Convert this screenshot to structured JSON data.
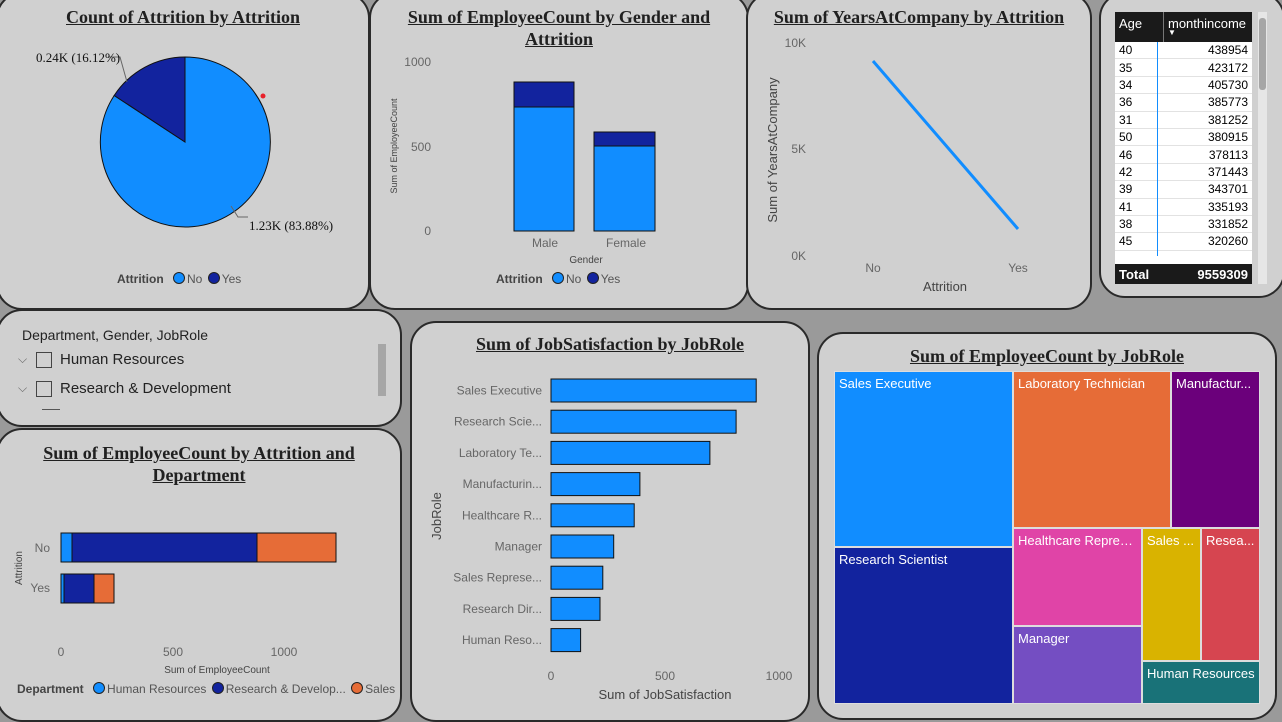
{
  "pie": {
    "title": "Count of Attrition by Attrition",
    "label_yes": "0.24K (16.12%)",
    "label_no": "1.23K (83.88%)",
    "legend_title": "Attrition",
    "legend": [
      "No",
      "Yes"
    ]
  },
  "gender": {
    "title_line1": "Sum of EmployeeCount by Gender and",
    "title_line2": "Attrition",
    "ylabel": "Sum of EmployeeCount",
    "xlabel": "Gender",
    "yticks": [
      "1000",
      "500",
      "0"
    ],
    "legend_title": "Attrition",
    "legend": [
      "No",
      "Yes"
    ]
  },
  "years": {
    "title": "Sum of YearsAtCompany by Attrition",
    "ylabel": "Sum of YearsAtCompany",
    "xlabel": "Attrition",
    "yticks": [
      "10K",
      "5K",
      "0K"
    ]
  },
  "matrix": {
    "headers": [
      "Age",
      "monthincome"
    ],
    "total_label": "Total",
    "total_value": "9559309"
  },
  "slicer": {
    "title": "Department, Gender, JobRole",
    "items": [
      "Human Resources",
      "Research & Development"
    ]
  },
  "dept": {
    "title_line1": "Sum of EmployeeCount by Attrition and",
    "title_line2": "Department",
    "ylabel": "Attrition",
    "xlabel": "Sum of EmployeeCount",
    "xticks": [
      "0",
      "500",
      "1000"
    ],
    "legend_title": "Department",
    "legend": [
      "Human Resources",
      "Research & Develop...",
      "Sales"
    ]
  },
  "jobsat": {
    "title": "Sum of JobSatisfaction by JobRole",
    "ylabel": "JobRole",
    "xlabel": "Sum of JobSatisfaction",
    "xticks": [
      "0",
      "500",
      "1000"
    ]
  },
  "treemap": {
    "title": "Sum of EmployeeCount by JobRole",
    "labels": {
      "sales_exec": "Sales Executive",
      "lab_tech": "Laboratory Technician",
      "manuf": "Manufactur...",
      "research_sci": "Research Scientist",
      "healthcare": "Healthcare Repres...",
      "sales_rep": "Sales ...",
      "research_dir": "Resea...",
      "manager": "Manager",
      "hr": "Human Resources"
    }
  },
  "colors": {
    "light_blue": "#118dff",
    "dark_blue": "#12239e",
    "orange": "#e66c37",
    "purple": "#6b007b",
    "pink": "#e044a7",
    "violet": "#744ec2",
    "yellow": "#d9b300",
    "red": "#d64550",
    "teal": "#197278"
  },
  "chart_data": [
    {
      "type": "pie",
      "title": "Count of Attrition by Attrition",
      "categories": [
        "No",
        "Yes"
      ],
      "values": [
        1233,
        237
      ],
      "percent": [
        83.88,
        16.12
      ],
      "legend_title": "Attrition"
    },
    {
      "type": "bar",
      "title": "Sum of EmployeeCount by Gender and Attrition",
      "categories": [
        "Male",
        "Female"
      ],
      "series": [
        {
          "name": "No",
          "values": [
            732,
            501
          ]
        },
        {
          "name": "Yes",
          "values": [
            150,
            87
          ]
        }
      ],
      "xlabel": "Gender",
      "ylabel": "Sum of EmployeeCount",
      "ylim": [
        0,
        1000
      ],
      "stacked": true
    },
    {
      "type": "line",
      "title": "Sum of YearsAtCompany by Attrition",
      "categories": [
        "No",
        "Yes"
      ],
      "values": [
        8900,
        1200
      ],
      "xlabel": "Attrition",
      "ylabel": "Sum of YearsAtCompany",
      "ylim": [
        0,
        10000
      ]
    },
    {
      "type": "table",
      "columns": [
        "Age",
        "monthincome"
      ],
      "rows": [
        [
          "40",
          "438954"
        ],
        [
          "35",
          "423172"
        ],
        [
          "34",
          "405730"
        ],
        [
          "36",
          "385773"
        ],
        [
          "31",
          "381252"
        ],
        [
          "50",
          "380915"
        ],
        [
          "46",
          "378113"
        ],
        [
          "42",
          "371443"
        ],
        [
          "39",
          "343701"
        ],
        [
          "41",
          "335193"
        ],
        [
          "38",
          "331852"
        ],
        [
          "45",
          "320260"
        ]
      ],
      "total": [
        "Total",
        "9559309"
      ]
    },
    {
      "type": "bar",
      "orientation": "horizontal",
      "stacked": true,
      "title": "Sum of EmployeeCount by Attrition and Department",
      "categories": [
        "No",
        "Yes"
      ],
      "series": [
        {
          "name": "Human Resources",
          "values": [
            51,
            12
          ]
        },
        {
          "name": "Research & Development",
          "values": [
            828,
            133
          ]
        },
        {
          "name": "Sales",
          "values": [
            354,
            92
          ]
        }
      ],
      "xlabel": "Sum of EmployeeCount",
      "ylabel": "Attrition",
      "xlim": [
        0,
        1250
      ]
    },
    {
      "type": "bar",
      "orientation": "horizontal",
      "title": "Sum of JobSatisfaction by JobRole",
      "categories": [
        "Sales Executive",
        "Research Scie...",
        "Laboratory Te...",
        "Manufacturin...",
        "Healthcare R...",
        "Manager",
        "Sales Represe...",
        "Research Dir...",
        "Human Reso..."
      ],
      "values": [
        900,
        812,
        697,
        390,
        365,
        275,
        227,
        215,
        130
      ],
      "xlabel": "Sum of JobSatisfaction",
      "ylabel": "JobRole",
      "xlim": [
        0,
        1050
      ]
    },
    {
      "type": "treemap",
      "title": "Sum of EmployeeCount by JobRole",
      "categories": [
        "Sales Executive",
        "Research Scientist",
        "Laboratory Technician",
        "Manufacturing Director",
        "Healthcare Representative",
        "Manager",
        "Sales Representative",
        "Research Director",
        "Human Resources"
      ],
      "values": [
        326,
        292,
        259,
        145,
        131,
        102,
        83,
        80,
        52
      ]
    }
  ]
}
